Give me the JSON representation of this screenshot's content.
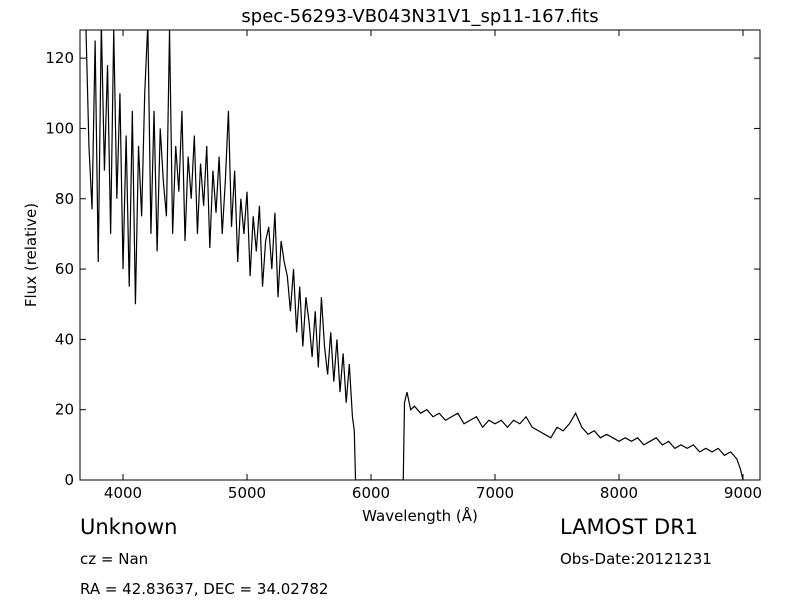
{
  "chart_data": {
    "type": "line",
    "title": "spec-56293-VB043N31V1_sp11-167.fits",
    "x_label": "Wavelength (Å)",
    "y_label": "Flux (relative)",
    "annotations": [
      "Unknown",
      "cz = Nan",
      "RA = 42.83637, DEC = 34.02782",
      "LAMOST DR1",
      "Obs-Date:20121231"
    ],
    "color": "#000000",
    "xlim": [
      3653,
      9137
    ],
    "ylim": [
      0,
      128
    ],
    "xticks": [
      4000,
      5000,
      6000,
      7000,
      8000,
      9000
    ],
    "yticks": [
      0,
      20,
      40,
      60,
      80,
      100,
      120
    ],
    "x": [
      3700,
      3725,
      3750,
      3775,
      3800,
      3825,
      3850,
      3875,
      3900,
      3925,
      3950,
      3975,
      4000,
      4025,
      4050,
      4075,
      4100,
      4125,
      4150,
      4175,
      4200,
      4225,
      4250,
      4275,
      4300,
      4325,
      4350,
      4375,
      4400,
      4425,
      4450,
      4475,
      4500,
      4525,
      4550,
      4575,
      4600,
      4625,
      4650,
      4675,
      4700,
      4725,
      4750,
      4775,
      4800,
      4825,
      4850,
      4875,
      4900,
      4925,
      4950,
      4975,
      5000,
      5025,
      5050,
      5075,
      5100,
      5125,
      5150,
      5175,
      5200,
      5225,
      5250,
      5275,
      5300,
      5325,
      5350,
      5375,
      5400,
      5425,
      5450,
      5475,
      5500,
      5525,
      5550,
      5575,
      5600,
      5625,
      5650,
      5675,
      5700,
      5725,
      5750,
      5775,
      5800,
      5825,
      5850,
      5865,
      5875,
      6260,
      6270,
      6290,
      6320,
      6350,
      6400,
      6450,
      6500,
      6550,
      6600,
      6650,
      6700,
      6750,
      6800,
      6850,
      6900,
      6950,
      7000,
      7050,
      7100,
      7150,
      7200,
      7250,
      7300,
      7350,
      7400,
      7450,
      7500,
      7550,
      7600,
      7650,
      7700,
      7750,
      7800,
      7850,
      7900,
      7950,
      8000,
      8050,
      8100,
      8150,
      8200,
      8250,
      8300,
      8350,
      8400,
      8450,
      8500,
      8550,
      8600,
      8650,
      8700,
      8750,
      8800,
      8850,
      8900,
      8950,
      8980,
      9000
    ],
    "values": [
      130,
      95,
      77,
      125,
      62,
      130,
      88,
      118,
      70,
      128,
      80,
      110,
      60,
      98,
      55,
      105,
      50,
      95,
      75,
      110,
      130,
      70,
      105,
      65,
      100,
      85,
      75,
      128,
      70,
      95,
      82,
      105,
      68,
      92,
      80,
      98,
      70,
      90,
      78,
      95,
      66,
      88,
      76,
      92,
      70,
      85,
      105,
      72,
      88,
      62,
      80,
      70,
      82,
      58,
      75,
      65,
      78,
      55,
      68,
      72,
      60,
      76,
      52,
      68,
      62,
      58,
      48,
      60,
      42,
      55,
      38,
      52,
      45,
      35,
      48,
      32,
      52,
      38,
      30,
      42,
      28,
      40,
      25,
      36,
      22,
      33,
      18,
      14,
      0,
      0,
      22,
      25,
      20,
      21,
      19,
      20,
      18,
      19,
      17,
      18,
      19,
      16,
      17,
      18,
      15,
      17,
      16,
      17,
      15,
      17,
      16,
      18,
      15,
      14,
      13,
      12,
      15,
      14,
      16,
      19,
      15,
      13,
      14,
      12,
      13,
      12,
      11,
      12,
      11,
      12,
      10,
      11,
      12,
      10,
      11,
      9,
      10,
      9,
      10,
      8,
      9,
      8,
      9,
      7,
      8,
      6,
      3,
      0
    ]
  }
}
